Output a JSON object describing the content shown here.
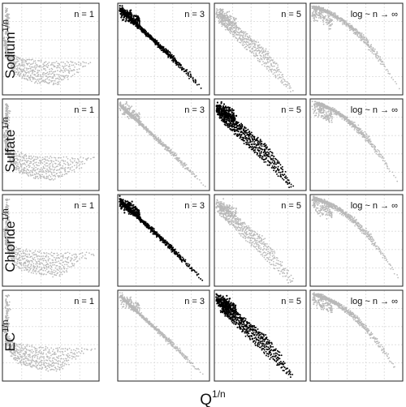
{
  "chart_data": {
    "type": "scatter",
    "layout": "small-multiples grid (4 rows × 4 columns)",
    "grid": true,
    "axis_ticks": "none",
    "xlabel": {
      "base": "Q",
      "exponent": "1/n"
    },
    "rows": [
      {
        "name": "Sodium",
        "ylabel": {
          "base": "Sodium",
          "exponent": "1/n"
        },
        "highlight_col": 1
      },
      {
        "name": "Sulfate",
        "ylabel": {
          "base": "Sulfate",
          "exponent": "1/n"
        },
        "highlight_col": 2
      },
      {
        "name": "Chloride",
        "ylabel": {
          "base": "Chloride",
          "exponent": "1/n"
        },
        "highlight_col": 1
      },
      {
        "name": "EC",
        "ylabel": {
          "base": "EC",
          "exponent": "1/n"
        },
        "highlight_col": 2
      }
    ],
    "columns": [
      {
        "label": "n =  1",
        "shape": "hyperbolic"
      },
      {
        "label": "n =  3",
        "shape": "steep-linear"
      },
      {
        "label": "n =  5",
        "shape": "linear"
      },
      {
        "label": "log ~ n → ∞",
        "shape": "concave"
      }
    ],
    "colors": {
      "highlight": "#000000",
      "normal": "#b8b8b8",
      "grid": "#d9d9d9",
      "border": "#222222"
    }
  }
}
